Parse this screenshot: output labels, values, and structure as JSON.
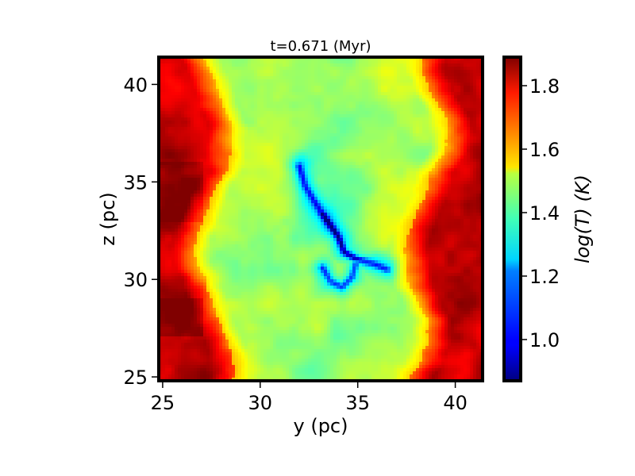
{
  "chart_data": {
    "type": "heatmap",
    "title": "t=0.671 (Myr)",
    "xlabel": "y (pc)",
    "ylabel": "z (pc)",
    "xlim": [
      24.8,
      41.4
    ],
    "ylim": [
      24.8,
      41.4
    ],
    "x_ticks": [
      25,
      30,
      35,
      40
    ],
    "y_ticks": [
      25,
      30,
      35,
      40
    ],
    "x_tick_labels": [
      "25",
      "30",
      "35",
      "40"
    ],
    "y_tick_labels": [
      "25",
      "30",
      "35",
      "40"
    ],
    "colorbar": {
      "label": "log(T) (K)",
      "label_parts": {
        "a": "log(",
        "b": "T",
        "c": ") (",
        "d": "K",
        "e": ")"
      },
      "colormap": "jet",
      "range": [
        0.87,
        1.89
      ],
      "ticks": [
        1.0,
        1.2,
        1.4,
        1.6,
        1.8
      ],
      "tick_labels": [
        "1.0",
        "1.2",
        "1.4",
        "1.6",
        "1.8"
      ]
    },
    "field_summary": {
      "hot_outer_bands_logT": 1.82,
      "warm_band_edges_logT": 1.62,
      "central_slab_logT": 1.45,
      "central_slab_y_range": [
        28.3,
        38.5
      ],
      "filament_min_logT": 0.95,
      "filament_y_range": [
        32.0,
        36.5
      ],
      "filament_z_range": [
        29.5,
        36.0
      ]
    }
  }
}
